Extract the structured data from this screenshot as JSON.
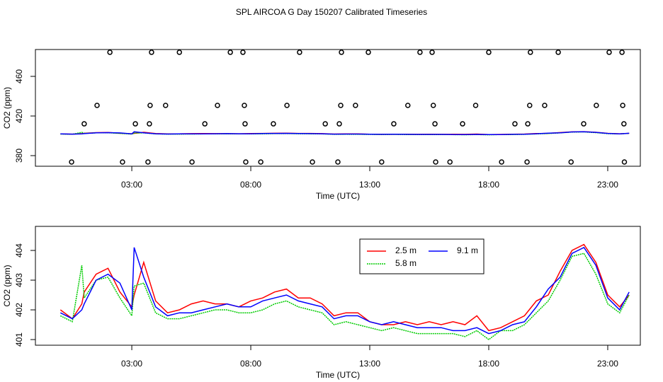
{
  "chart_data": [
    {
      "type": "scatter",
      "title": "SPL AIRCOA G  Day 150207  Calibrated Timeseries",
      "xlabel": "Time (UTC)",
      "ylabel": "CO2 (ppm)",
      "xlim": [
        -1.05,
        24.37
      ],
      "ylim": [
        369.3,
        487.1
      ],
      "xticks": [
        {
          "value": 3,
          "label": "03:00"
        },
        {
          "value": 8,
          "label": "08:00"
        },
        {
          "value": 13,
          "label": "13:00"
        },
        {
          "value": 18,
          "label": "18:00"
        },
        {
          "value": 23,
          "label": "23:00"
        }
      ],
      "yticks": [
        380,
        420,
        460
      ],
      "points": {
        "x": [
          2.08,
          3.83,
          5.0,
          7.14,
          7.67,
          10.05,
          11.81,
          12.94,
          15.11,
          15.62,
          18.0,
          19.75,
          20.92,
          23.06,
          23.6,
          1.54,
          3.77,
          4.42,
          6.6,
          7.73,
          9.52,
          11.78,
          12.4,
          14.6,
          15.67,
          17.45,
          19.72,
          20.35,
          22.52,
          23.63,
          1.0,
          3.15,
          3.74,
          6.07,
          7.76,
          8.95,
          11.13,
          11.72,
          14.01,
          15.74,
          16.9,
          19.1,
          19.64,
          21.99,
          23.68,
          0.47,
          2.61,
          3.68,
          5.53,
          7.79,
          8.42,
          10.59,
          11.66,
          13.5,
          15.77,
          16.37,
          18.54,
          19.61,
          21.46,
          23.7
        ],
        "y": [
          484.3,
          484.3,
          484.3,
          484.3,
          484.3,
          484.3,
          484.3,
          484.3,
          484.3,
          484.3,
          484.3,
          484.3,
          484.3,
          484.3,
          484.3,
          430.7,
          430.7,
          430.7,
          430.7,
          430.7,
          430.7,
          430.7,
          430.7,
          430.7,
          430.7,
          430.7,
          430.7,
          430.7,
          430.7,
          430.7,
          412.1,
          412.1,
          412.1,
          412.1,
          412.1,
          412.1,
          412.1,
          412.1,
          412.1,
          412.1,
          412.1,
          412.1,
          412.1,
          412.1,
          412.1,
          373.6,
          373.6,
          373.6,
          373.6,
          373.6,
          373.6,
          373.6,
          373.6,
          373.6,
          373.6,
          373.6,
          373.6,
          373.6,
          373.6,
          373.6
        ]
      }
    },
    {
      "type": "line",
      "xlabel": "Time (UTC)",
      "ylabel": "CO2 (ppm)",
      "xlim": [
        -1.05,
        24.37
      ],
      "ylim": [
        400.81,
        404.81
      ],
      "xticks": [
        {
          "value": 3,
          "label": "03:00"
        },
        {
          "value": 8,
          "label": "08:00"
        },
        {
          "value": 13,
          "label": "13:00"
        },
        {
          "value": 18,
          "label": "18:00"
        },
        {
          "value": 23,
          "label": "23:00"
        }
      ],
      "yticks": [
        401,
        402,
        403,
        404
      ],
      "legend": "top",
      "x": [
        0,
        0.5,
        0.9,
        1.0,
        1.5,
        2.0,
        2.5,
        3.0,
        3.1,
        3.5,
        4.0,
        4.5,
        5.0,
        5.5,
        6.0,
        6.5,
        7.0,
        7.5,
        8.0,
        8.5,
        9.0,
        9.5,
        10.0,
        10.5,
        11.0,
        11.5,
        12.0,
        12.5,
        13.0,
        13.5,
        14.0,
        14.5,
        15.0,
        15.5,
        16.0,
        16.5,
        17.0,
        17.5,
        18.0,
        18.5,
        19.0,
        19.5,
        20.0,
        20.5,
        21.0,
        21.5,
        22.0,
        22.5,
        23.0,
        23.5,
        23.9
      ],
      "series": [
        {
          "name": "2.5 m",
          "color": "#ff0000",
          "values": [
            402.0,
            401.7,
            402.2,
            402.6,
            403.2,
            403.4,
            402.6,
            402.1,
            402.5,
            403.6,
            402.3,
            401.9,
            402.0,
            402.2,
            402.3,
            402.2,
            402.2,
            402.1,
            402.3,
            402.4,
            402.6,
            402.7,
            402.4,
            402.4,
            402.2,
            401.8,
            401.9,
            401.9,
            401.6,
            401.5,
            401.5,
            401.6,
            401.5,
            401.6,
            401.5,
            401.6,
            401.5,
            401.8,
            401.3,
            401.4,
            401.6,
            401.8,
            402.3,
            402.5,
            403.3,
            404.0,
            404.2,
            403.6,
            402.5,
            402.1,
            402.5
          ]
        },
        {
          "name": "5.8 m",
          "color": "#00cc00",
          "values": [
            401.8,
            401.6,
            403.5,
            402.4,
            403.0,
            403.1,
            402.4,
            401.8,
            402.8,
            402.9,
            401.9,
            401.7,
            401.7,
            401.8,
            401.9,
            402.0,
            402.0,
            401.9,
            401.9,
            402.0,
            402.2,
            402.3,
            402.1,
            402.0,
            401.9,
            401.5,
            401.6,
            401.5,
            401.4,
            401.3,
            401.4,
            401.3,
            401.2,
            401.2,
            401.2,
            401.2,
            401.1,
            401.3,
            401.0,
            401.3,
            401.3,
            401.5,
            401.9,
            402.3,
            403.0,
            403.8,
            403.9,
            403.2,
            402.2,
            401.9,
            402.5
          ]
        },
        {
          "name": "9.1 m",
          "color": "#0000ff",
          "values": [
            401.9,
            401.7,
            402.0,
            402.2,
            403.0,
            403.2,
            402.9,
            402.0,
            404.1,
            403.1,
            402.1,
            401.8,
            401.9,
            401.9,
            402.0,
            402.1,
            402.2,
            402.1,
            402.1,
            402.3,
            402.4,
            402.5,
            402.3,
            402.2,
            402.1,
            401.7,
            401.8,
            401.8,
            401.6,
            401.5,
            401.6,
            401.5,
            401.4,
            401.4,
            401.4,
            401.3,
            401.3,
            401.4,
            401.2,
            401.3,
            401.5,
            401.6,
            402.1,
            402.7,
            403.1,
            403.9,
            404.1,
            403.5,
            402.4,
            402.0,
            402.6
          ]
        }
      ]
    }
  ]
}
